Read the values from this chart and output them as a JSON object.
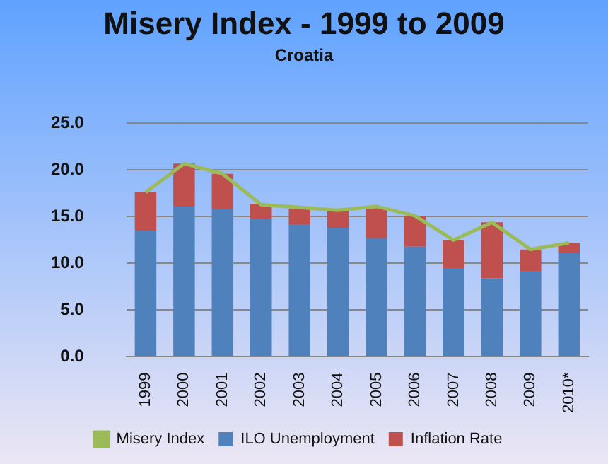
{
  "chart_data": {
    "type": "bar",
    "title": "Misery Index - 1999 to 2009",
    "subtitle": "Croatia",
    "categories": [
      "1999",
      "2000",
      "2001",
      "2002",
      "2003",
      "2004",
      "2005",
      "2006",
      "2007",
      "2008",
      "2009",
      "2010*"
    ],
    "series": [
      {
        "name": "ILO Unemployment",
        "color": "#4f81bd",
        "values": [
          13.5,
          16.1,
          15.8,
          14.8,
          14.2,
          13.8,
          12.7,
          11.8,
          9.5,
          8.4,
          9.2,
          11.1
        ]
      },
      {
        "name": "Inflation Rate",
        "color": "#c0504d",
        "values": [
          4.1,
          4.6,
          3.8,
          1.6,
          1.7,
          1.9,
          3.3,
          3.3,
          3.0,
          6.0,
          2.3,
          1.1
        ]
      },
      {
        "name": "Misery Index",
        "type": "line",
        "color": "#9bbb59",
        "values": [
          17.6,
          20.7,
          19.6,
          16.3,
          16.0,
          15.7,
          16.1,
          15.1,
          12.5,
          14.4,
          11.5,
          12.2
        ]
      }
    ],
    "stacked": true,
    "ylim": [
      0,
      25
    ],
    "yticks": [
      {
        "value": 0,
        "label": "0.0"
      },
      {
        "value": 5,
        "label": "5.0"
      },
      {
        "value": 10,
        "label": "10.0"
      },
      {
        "value": 15,
        "label": "15.0"
      },
      {
        "value": 20,
        "label": "20.0"
      },
      {
        "value": 25,
        "label": "25.0"
      }
    ],
    "grid": "y",
    "legend": "bottom",
    "marker": "none"
  }
}
